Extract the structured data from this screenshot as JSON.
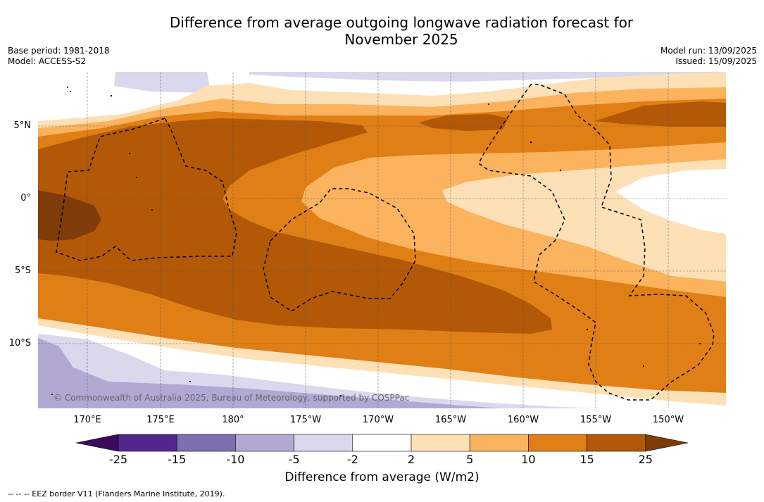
{
  "title_line1": "Difference from average outgoing longwave radiation forecast for",
  "title_line2": "November 2025",
  "base_period": "Base period: 1981-2018",
  "model": "Model: ACCESS-S2",
  "model_run": "Model run: 13/09/2025",
  "issued": "Issued: 15/09/2025",
  "lat_labels": [
    "5°N",
    "0°",
    "5°S",
    "10°S"
  ],
  "lon_labels": [
    "170°E",
    "175°E",
    "180°",
    "175°W",
    "170°W",
    "165°W",
    "160°W",
    "155°W",
    "150°W"
  ],
  "colorbar": {
    "ticks": [
      "-25",
      "-15",
      "-10",
      "-5",
      "-2",
      "2",
      "5",
      "10",
      "15",
      "25"
    ],
    "colors": [
      "#3b0a5c",
      "#54278f",
      "#7f6fb0",
      "#b1a8d4",
      "#d9d8ec",
      "#ffffff",
      "#fde0b6",
      "#fbb35e",
      "#e07f15",
      "#b35806",
      "#7f3b08"
    ],
    "label": "Difference from average (W/m2)"
  },
  "copyright": "© Commonwealth of Australia 2025, Bureau of Meteorology, supported by COSPPac",
  "footnote": "--  --  -- EEZ border V11 (Flanders Marine Institute, 2019).",
  "icons": [
    "eez-border-dashed-line",
    "map-grid"
  ]
}
